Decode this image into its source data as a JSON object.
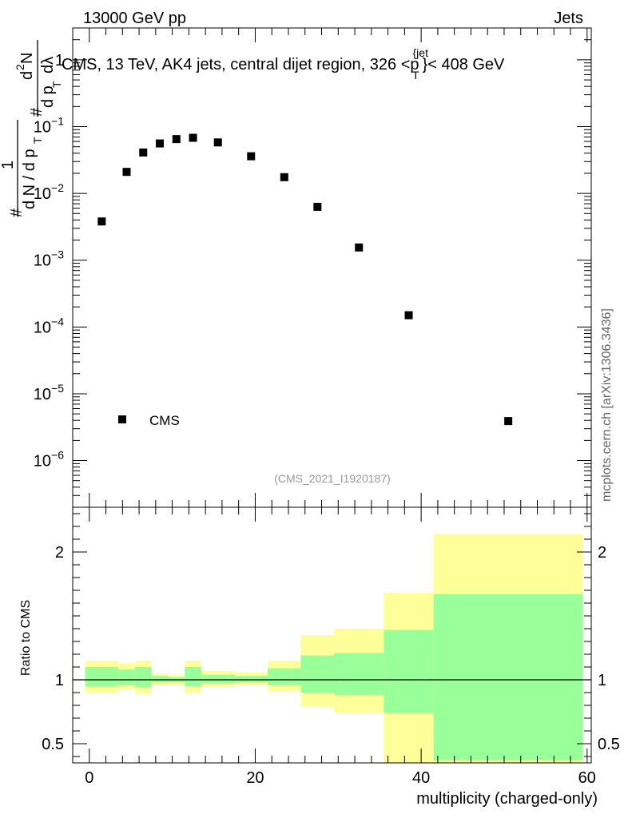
{
  "header": {
    "left": "13000 GeV pp",
    "right": "Jets"
  },
  "watermark": "mcplots.cern.ch [arXiv:1306.3436]",
  "analysis_id": "(CMS_2021_I1920187)",
  "colors": {
    "yellow_band": "#ffff99",
    "green_band": "#99ff99",
    "marker": "#000000",
    "analysis_id_text": "#999999"
  },
  "chart_data": [
    {
      "type": "scatter",
      "title": "CMS, 13 TeV, AK4 jets, central dijet region, 326 <p_T^{jet}> < 408 GeV",
      "title_parts": {
        "main": "CMS, 13 TeV, AK4 jets, central dijet region, 326 <p",
        "sup": "{jet",
        "sub": "T",
        "tail": "}< 408 GeV"
      },
      "ylabel": "1/(dN/dp_T) d^2N/(dp_T dλ)",
      "ylabel_parts": {
        "hash1": "#",
        "one": "1",
        "lower_den": "d N / d p",
        "t_sub": "T",
        "hash2": "#",
        "num_d2n": "d",
        "two": "2",
        "num_n": "N",
        "den": "d p",
        "den_sub": "T",
        "dl": "dλ"
      },
      "yscale": "log",
      "ylim": [
        2e-07,
        3
      ],
      "xlim": [
        -2,
        60.5
      ],
      "y_ticks": [
        {
          "mant": "10",
          "exp": "−6",
          "value": 1e-06
        },
        {
          "mant": "10",
          "exp": "−5",
          "value": 1e-05
        },
        {
          "mant": "10",
          "exp": "−4",
          "value": 0.0001
        },
        {
          "mant": "10",
          "exp": "−3",
          "value": 0.001
        },
        {
          "mant": "10",
          "exp": "−2",
          "value": 0.01
        },
        {
          "mant": "10",
          "exp": "−1",
          "value": 0.1
        },
        {
          "mant": "1",
          "exp": "",
          "value": 1
        }
      ],
      "legend": {
        "label": "CMS",
        "position": "bottom-left"
      },
      "series": [
        {
          "name": "CMS",
          "x": [
            1.5,
            4.5,
            6.5,
            8.5,
            10.5,
            12.5,
            15.5,
            19.5,
            23.5,
            27.5,
            32.5,
            38.5,
            50.5
          ],
          "y": [
            0.0038,
            0.021,
            0.041,
            0.056,
            0.065,
            0.068,
            0.058,
            0.036,
            0.0175,
            0.0063,
            0.00155,
            0.00015,
            3.9e-06
          ]
        }
      ]
    },
    {
      "type": "area",
      "title": "",
      "ylabel": "Ratio to CMS",
      "xlabel": "multiplicity (charged-only)",
      "ylim": [
        0.35,
        2.35
      ],
      "xlim": [
        -2,
        60.5
      ],
      "x_ticks": [
        {
          "label": "0",
          "value": 0
        },
        {
          "label": "20",
          "value": 20
        },
        {
          "label": "40",
          "value": 40
        },
        {
          "label": "60",
          "value": 60
        }
      ],
      "y_ticks": [
        {
          "label": "0.5",
          "value": 0.5
        },
        {
          "label": "1",
          "value": 1
        },
        {
          "label": "2",
          "value": 2
        }
      ],
      "reference_line": 1,
      "bins": [
        {
          "xlo": -0.5,
          "xhi": 3.5,
          "yel_lo": 0.9,
          "yel_hi": 1.15,
          "grn_lo": 0.95,
          "grn_hi": 1.1
        },
        {
          "xlo": 3.5,
          "xhi": 5.5,
          "yel_lo": 0.92,
          "yel_hi": 1.13,
          "grn_lo": 0.96,
          "grn_hi": 1.08
        },
        {
          "xlo": 5.5,
          "xhi": 7.5,
          "yel_lo": 0.89,
          "yel_hi": 1.15,
          "grn_lo": 0.94,
          "grn_hi": 1.1
        },
        {
          "xlo": 7.5,
          "xhi": 9.5,
          "yel_lo": 0.96,
          "yel_hi": 1.05,
          "grn_lo": 0.98,
          "grn_hi": 1.03
        },
        {
          "xlo": 9.5,
          "xhi": 11.5,
          "yel_lo": 0.96,
          "yel_hi": 1.04,
          "grn_lo": 0.98,
          "grn_hi": 1.02
        },
        {
          "xlo": 11.5,
          "xhi": 13.5,
          "yel_lo": 0.9,
          "yel_hi": 1.15,
          "grn_lo": 0.95,
          "grn_hi": 1.1
        },
        {
          "xlo": 13.5,
          "xhi": 17.5,
          "yel_lo": 0.95,
          "yel_hi": 1.07,
          "grn_lo": 0.97,
          "grn_hi": 1.04
        },
        {
          "xlo": 17.5,
          "xhi": 21.5,
          "yel_lo": 0.96,
          "yel_hi": 1.06,
          "grn_lo": 0.98,
          "grn_hi": 1.03
        },
        {
          "xlo": 21.5,
          "xhi": 25.5,
          "yel_lo": 0.91,
          "yel_hi": 1.15,
          "grn_lo": 0.96,
          "grn_hi": 1.09
        },
        {
          "xlo": 25.5,
          "xhi": 29.5,
          "yel_lo": 0.79,
          "yel_hi": 1.35,
          "grn_lo": 0.9,
          "grn_hi": 1.19
        },
        {
          "xlo": 29.5,
          "xhi": 35.5,
          "yel_lo": 0.74,
          "yel_hi": 1.4,
          "grn_lo": 0.88,
          "grn_hi": 1.21
        },
        {
          "xlo": 35.5,
          "xhi": 41.5,
          "yel_lo": 0.35,
          "yel_hi": 1.68,
          "grn_lo": 0.74,
          "grn_hi": 1.39
        },
        {
          "xlo": 41.5,
          "xhi": 59.5,
          "yel_lo": 0.35,
          "yel_hi": 2.14,
          "grn_lo": 0.37,
          "grn_hi": 1.67
        }
      ]
    }
  ]
}
